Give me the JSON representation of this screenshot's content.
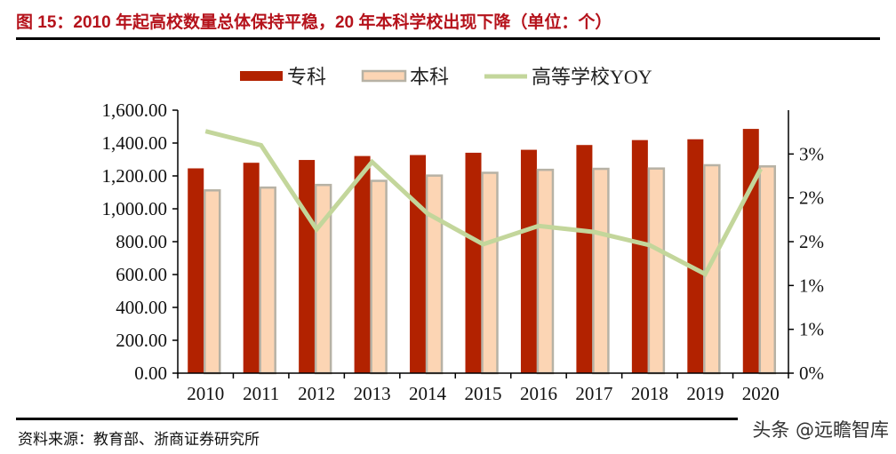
{
  "header": {
    "title": "图 15：2010 年起高校数量总体保持平稳，20 年本科学校出现下降（单位：个）"
  },
  "footer": {
    "source": "资料来源：教育部、浙商证券研究所",
    "watermark": "头条 @远瞻智库"
  },
  "colors": {
    "title": "#b5121b",
    "zhuanke": "#b22200",
    "benke_fill": "#fcd5b4",
    "benke_border": "#b7b2a5",
    "yoy_line": "#c3d69b"
  },
  "legend": [
    {
      "label": "专科",
      "type": "bar",
      "color": "#b22200"
    },
    {
      "label": "本科",
      "type": "bar",
      "color": "#fcd5b4"
    },
    {
      "label": "高等学校YOY",
      "type": "line",
      "color": "#c3d69b"
    }
  ],
  "chart_data": {
    "type": "bar",
    "title": "图 15：2010 年起高校数量总体保持平稳，20 年本科学校出现下降（单位：个）",
    "categories": [
      "2010",
      "2011",
      "2012",
      "2013",
      "2014",
      "2015",
      "2016",
      "2017",
      "2018",
      "2019",
      "2020"
    ],
    "series": [
      {
        "name": "专科",
        "type": "bar",
        "axis": "left",
        "values": [
          1246,
          1280,
          1297,
          1321,
          1327,
          1341,
          1359,
          1388,
          1418,
          1423,
          1486
        ]
      },
      {
        "name": "本科",
        "type": "bar",
        "axis": "left",
        "values": [
          1112,
          1129,
          1145,
          1170,
          1202,
          1219,
          1237,
          1243,
          1245,
          1265,
          1258
        ]
      },
      {
        "name": "高等学校YOY",
        "type": "line",
        "axis": "right",
        "unit": "%",
        "values": [
          2.76,
          2.6,
          1.64,
          2.41,
          1.82,
          1.47,
          1.68,
          1.61,
          1.46,
          1.13,
          2.33
        ]
      }
    ],
    "left_axis": {
      "min": 0,
      "max": 1600,
      "step": 200,
      "tick_labels": [
        "0.00",
        "200.00",
        "400.00",
        "600.00",
        "800.00",
        "1,000.00",
        "1,200.00",
        "1,400.00",
        "1,600.00"
      ]
    },
    "right_axis": {
      "min": 0,
      "max": 3,
      "step": 0.5,
      "tick_labels": [
        "0%",
        "1%",
        "1%",
        "2%",
        "2%",
        "3%"
      ]
    },
    "xlabel": "",
    "ylabel": "",
    "grid": false,
    "legend_position": "top"
  }
}
